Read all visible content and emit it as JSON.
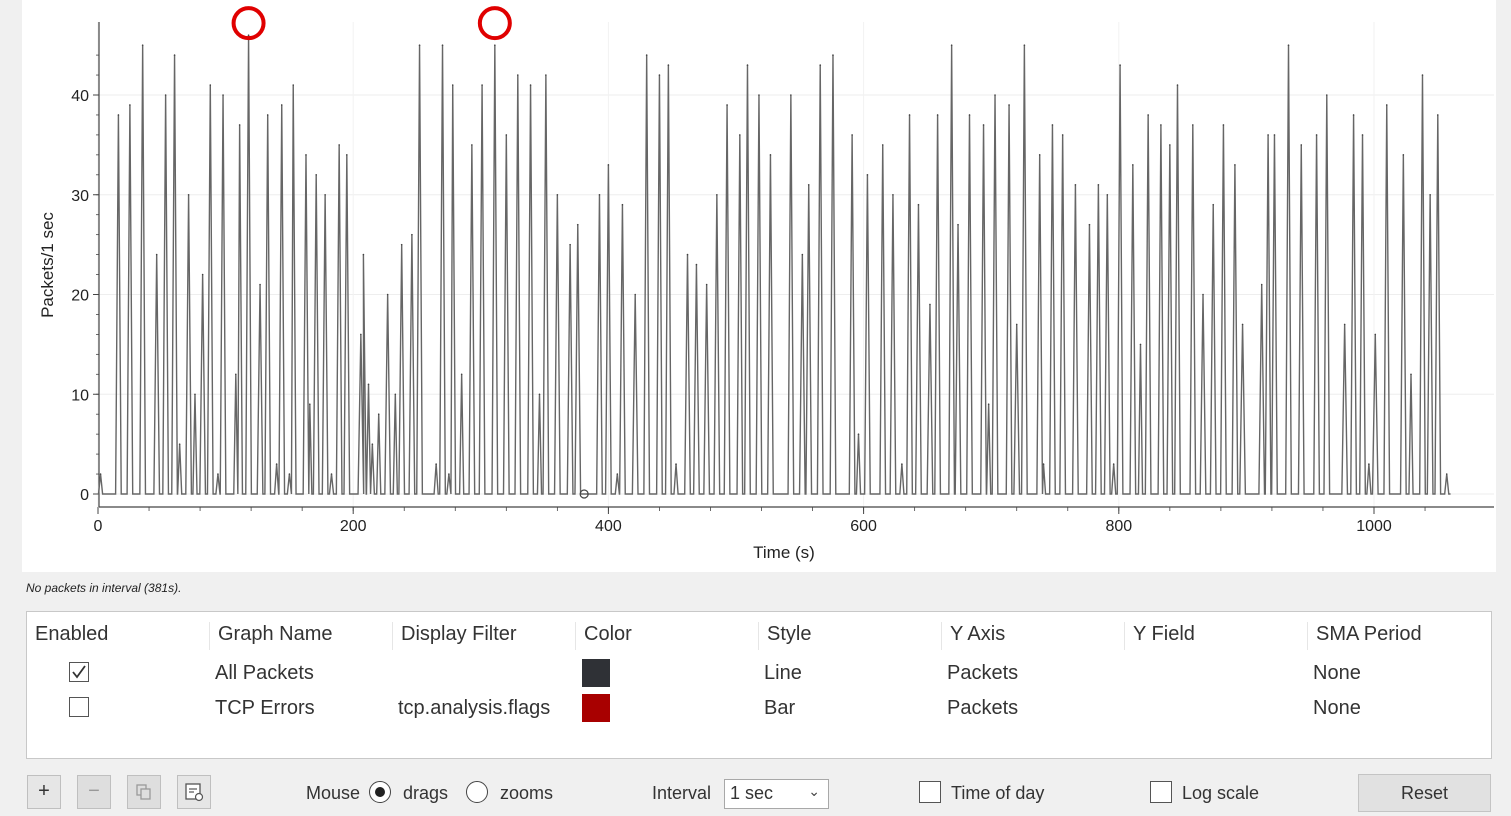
{
  "chart_data": {
    "type": "line",
    "xlabel": "Time (s)",
    "ylabel": "Packets/1 sec",
    "xlim": [
      0,
      1080
    ],
    "ylim": [
      0,
      47
    ],
    "x_ticks": [
      0,
      200,
      400,
      600,
      800,
      1000
    ],
    "y_ticks": [
      0,
      10,
      20,
      30,
      40
    ],
    "grid": true,
    "series": [
      {
        "name": "All Packets",
        "color": "#666666",
        "peaks": [
          [
            2,
            2
          ],
          [
            16,
            38
          ],
          [
            25,
            39
          ],
          [
            35,
            45
          ],
          [
            46,
            24
          ],
          [
            53,
            40
          ],
          [
            60,
            44
          ],
          [
            64,
            5
          ],
          [
            71,
            30
          ],
          [
            76,
            10
          ],
          [
            82,
            22
          ],
          [
            88,
            41
          ],
          [
            94,
            2
          ],
          [
            98,
            40
          ],
          [
            108,
            12
          ],
          [
            111,
            37
          ],
          [
            118,
            46
          ],
          [
            127,
            21
          ],
          [
            133,
            38
          ],
          [
            140,
            3
          ],
          [
            144,
            39
          ],
          [
            150,
            2
          ],
          [
            153,
            41
          ],
          [
            163,
            34
          ],
          [
            166,
            9
          ],
          [
            171,
            32
          ],
          [
            178,
            30
          ],
          [
            183,
            2
          ],
          [
            189,
            35
          ],
          [
            195,
            34
          ],
          [
            206,
            16
          ],
          [
            208,
            24
          ],
          [
            212,
            11
          ],
          [
            215,
            5
          ],
          [
            220,
            8
          ],
          [
            227,
            20
          ],
          [
            233,
            10
          ],
          [
            238,
            25
          ],
          [
            246,
            26
          ],
          [
            252,
            45
          ],
          [
            265,
            3
          ],
          [
            270,
            45
          ],
          [
            275,
            2
          ],
          [
            278,
            41
          ],
          [
            285,
            12
          ],
          [
            293,
            35
          ],
          [
            301,
            41
          ],
          [
            311,
            45
          ],
          [
            320,
            36
          ],
          [
            329,
            42
          ],
          [
            339,
            41
          ],
          [
            346,
            10
          ],
          [
            351,
            42
          ],
          [
            360,
            30
          ],
          [
            370,
            25
          ],
          [
            376,
            27
          ],
          [
            384,
            0
          ],
          [
            393,
            30
          ],
          [
            400,
            33
          ],
          [
            407,
            2
          ],
          [
            411,
            29
          ],
          [
            421,
            20
          ],
          [
            430,
            44
          ],
          [
            440,
            42
          ],
          [
            447,
            43
          ],
          [
            453,
            3
          ],
          [
            462,
            24
          ],
          [
            469,
            23
          ],
          [
            477,
            21
          ],
          [
            485,
            30
          ],
          [
            493,
            39
          ],
          [
            503,
            36
          ],
          [
            509,
            43
          ],
          [
            518,
            40
          ],
          [
            527,
            34
          ],
          [
            543,
            40
          ],
          [
            552,
            24
          ],
          [
            557,
            31
          ],
          [
            566,
            43
          ],
          [
            576,
            44
          ],
          [
            591,
            36
          ],
          [
            596,
            6
          ],
          [
            603,
            32
          ],
          [
            615,
            35
          ],
          [
            623,
            30
          ],
          [
            630,
            3
          ],
          [
            636,
            38
          ],
          [
            643,
            29
          ],
          [
            652,
            19
          ],
          [
            658,
            38
          ],
          [
            669,
            45
          ],
          [
            674,
            27
          ],
          [
            683,
            38
          ],
          [
            694,
            37
          ],
          [
            698,
            9
          ],
          [
            703,
            40
          ],
          [
            714,
            39
          ],
          [
            720,
            17
          ],
          [
            726,
            45
          ],
          [
            738,
            34
          ],
          [
            741,
            3
          ],
          [
            748,
            37
          ],
          [
            756,
            36
          ],
          [
            766,
            31
          ],
          [
            777,
            27
          ],
          [
            784,
            31
          ],
          [
            791,
            30
          ],
          [
            796,
            3
          ],
          [
            801,
            43
          ],
          [
            811,
            33
          ],
          [
            817,
            15
          ],
          [
            823,
            38
          ],
          [
            833,
            37
          ],
          [
            840,
            35
          ],
          [
            846,
            41
          ],
          [
            858,
            37
          ],
          [
            866,
            20
          ],
          [
            874,
            29
          ],
          [
            882,
            37
          ],
          [
            891,
            33
          ],
          [
            897,
            17
          ],
          [
            912,
            21
          ],
          [
            917,
            36
          ],
          [
            922,
            36
          ],
          [
            933,
            45
          ],
          [
            943,
            35
          ],
          [
            955,
            36
          ],
          [
            963,
            40
          ],
          [
            977,
            17
          ],
          [
            984,
            38
          ],
          [
            991,
            36
          ],
          [
            996,
            3
          ],
          [
            1001,
            16
          ],
          [
            1010,
            39
          ],
          [
            1023,
            34
          ],
          [
            1029,
            12
          ],
          [
            1038,
            42
          ],
          [
            1044,
            30
          ],
          [
            1050,
            38
          ],
          [
            1057,
            2
          ]
        ]
      }
    ],
    "annotations": [
      {
        "type": "circle",
        "x": 118,
        "y": 46,
        "color": "#e00000"
      },
      {
        "type": "circle",
        "x": 311,
        "y": 46,
        "color": "#e00000"
      }
    ],
    "marker": {
      "x": 381,
      "y": 0
    }
  },
  "status_hint": "No packets in interval (381s).",
  "graph_table": {
    "columns": [
      "Enabled",
      "Graph Name",
      "Display Filter",
      "Color",
      "Style",
      "Y Axis",
      "Y Field",
      "SMA Period"
    ],
    "rows": [
      {
        "enabled": true,
        "name": "All Packets",
        "filter": "",
        "color": "#2f3136",
        "style": "Line",
        "y_axis": "Packets",
        "y_field": "",
        "sma": "None"
      },
      {
        "enabled": false,
        "name": "TCP Errors",
        "filter": "tcp.analysis.flags",
        "color": "#a80000",
        "style": "Bar",
        "y_axis": "Packets",
        "y_field": "",
        "sma": "None"
      }
    ]
  },
  "toolbar": {
    "add_label": "+",
    "remove_label": "−",
    "copy_icon": "copy-icon",
    "clear_icon": "clipboard-icon",
    "mouse_label": "Mouse",
    "drags_label": "drags",
    "zooms_label": "zooms",
    "mouse_mode": "drags",
    "interval_label": "Interval",
    "interval_value": "1 sec",
    "time_of_day_label": "Time of day",
    "time_of_day_checked": false,
    "log_scale_label": "Log scale",
    "log_scale_checked": false,
    "reset_label": "Reset"
  }
}
